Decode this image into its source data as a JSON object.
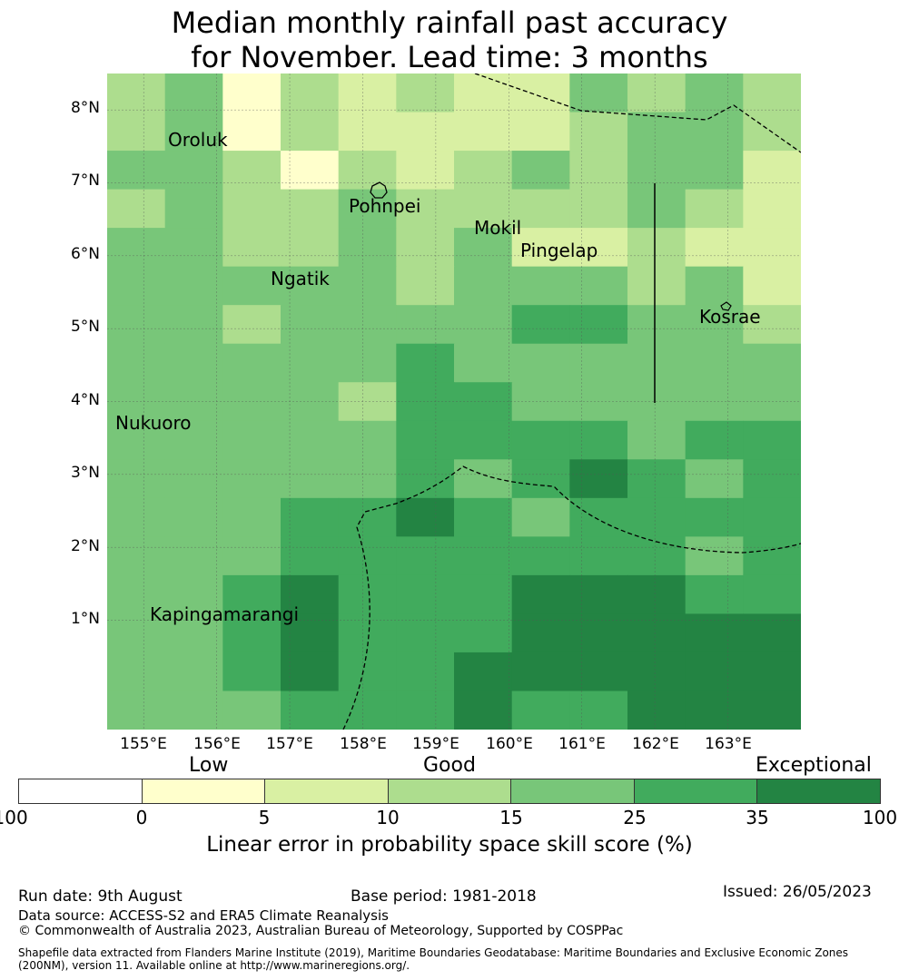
{
  "title_line1": "Median monthly rainfall past accuracy",
  "title_line2": "for November. Lead time: 3 months",
  "chart_data": {
    "type": "heatmap",
    "x_range": [
      "154.5°E",
      "164.0°E"
    ],
    "y_range": [
      "-0.5°N",
      "8.5°N"
    ],
    "lat_labels": [
      "8°N",
      "7°N",
      "6°N",
      "5°N",
      "4°N",
      "3°N",
      "2°N",
      "1°N"
    ],
    "lon_labels": [
      "155°E",
      "156°E",
      "157°E",
      "158°E",
      "159°E",
      "160°E",
      "161°E",
      "162°E",
      "163°E"
    ],
    "category_colors": [
      "#ffffff",
      "#ffffcc",
      "#d9f0a3",
      "#addd8e",
      "#78c679",
      "#41ab5d",
      "#238443"
    ],
    "grid_rows_top_to_bottom": [
      [
        3,
        4,
        1,
        3,
        2,
        3,
        2,
        2,
        4,
        3,
        4,
        3
      ],
      [
        3,
        4,
        1,
        3,
        2,
        2,
        2,
        2,
        3,
        4,
        4,
        3
      ],
      [
        4,
        4,
        3,
        1,
        3,
        2,
        3,
        4,
        3,
        4,
        4,
        2
      ],
      [
        3,
        4,
        3,
        3,
        4,
        3,
        3,
        3,
        3,
        4,
        3,
        2
      ],
      [
        4,
        4,
        3,
        3,
        4,
        3,
        4,
        2,
        2,
        3,
        2,
        2
      ],
      [
        4,
        4,
        4,
        4,
        4,
        3,
        4,
        4,
        4,
        3,
        4,
        2
      ],
      [
        4,
        4,
        3,
        4,
        4,
        4,
        4,
        5,
        5,
        4,
        4,
        3
      ],
      [
        4,
        4,
        4,
        4,
        4,
        5,
        4,
        4,
        4,
        4,
        4,
        4
      ],
      [
        4,
        4,
        4,
        4,
        3,
        5,
        5,
        4,
        4,
        4,
        4,
        4
      ],
      [
        4,
        4,
        4,
        4,
        4,
        5,
        5,
        5,
        5,
        4,
        5,
        5
      ],
      [
        4,
        4,
        4,
        4,
        4,
        5,
        4,
        5,
        6,
        5,
        4,
        5
      ],
      [
        4,
        4,
        4,
        5,
        5,
        6,
        5,
        4,
        5,
        5,
        5,
        5
      ],
      [
        4,
        4,
        4,
        5,
        5,
        5,
        5,
        5,
        5,
        5,
        4,
        5
      ],
      [
        4,
        4,
        5,
        6,
        5,
        5,
        5,
        6,
        6,
        6,
        5,
        5
      ],
      [
        4,
        4,
        5,
        6,
        5,
        5,
        5,
        6,
        6,
        6,
        6,
        6
      ],
      [
        4,
        4,
        5,
        6,
        5,
        5,
        6,
        6,
        6,
        6,
        6,
        6
      ],
      [
        4,
        4,
        4,
        5,
        5,
        5,
        6,
        5,
        5,
        6,
        6,
        6
      ]
    ]
  },
  "places": {
    "oroluk": "Oroluk",
    "pohnpei": "Pohnpei",
    "mokil": "Mokil",
    "pingelap": "Pingelap",
    "ngatik": "Ngatik",
    "kosrae": "Kosrae",
    "nukuoro": "Nukuoro",
    "kapingamarangi": "Kapingamarangi"
  },
  "colorbar": {
    "word_low": "Low",
    "word_good": "Good",
    "word_exceptional": "Exceptional",
    "ticks": [
      "-100",
      "0",
      "5",
      "10",
      "15",
      "25",
      "35",
      "100"
    ],
    "title": "Linear error in probability space skill score (%)"
  },
  "footer": {
    "run_date": "Run date: 9th August",
    "base_period": "Base period: 1981-2018",
    "issued": "Issued: 26/05/2023",
    "data_source": "Data source: ACCESS-S2 and ERA5 Climate Reanalysis",
    "copyright": "© Commonwealth of Australia 2023, Australian Bureau of Meteorology, Supported by COSPPac",
    "shapefile": "Shapefile data extracted from Flanders Marine Institute (2019), Maritime Boundaries Geodatabase: Maritime Boundaries and Exclusive Economic Zones (200NM), version 11. Available online at http://www.marineregions.org/."
  }
}
